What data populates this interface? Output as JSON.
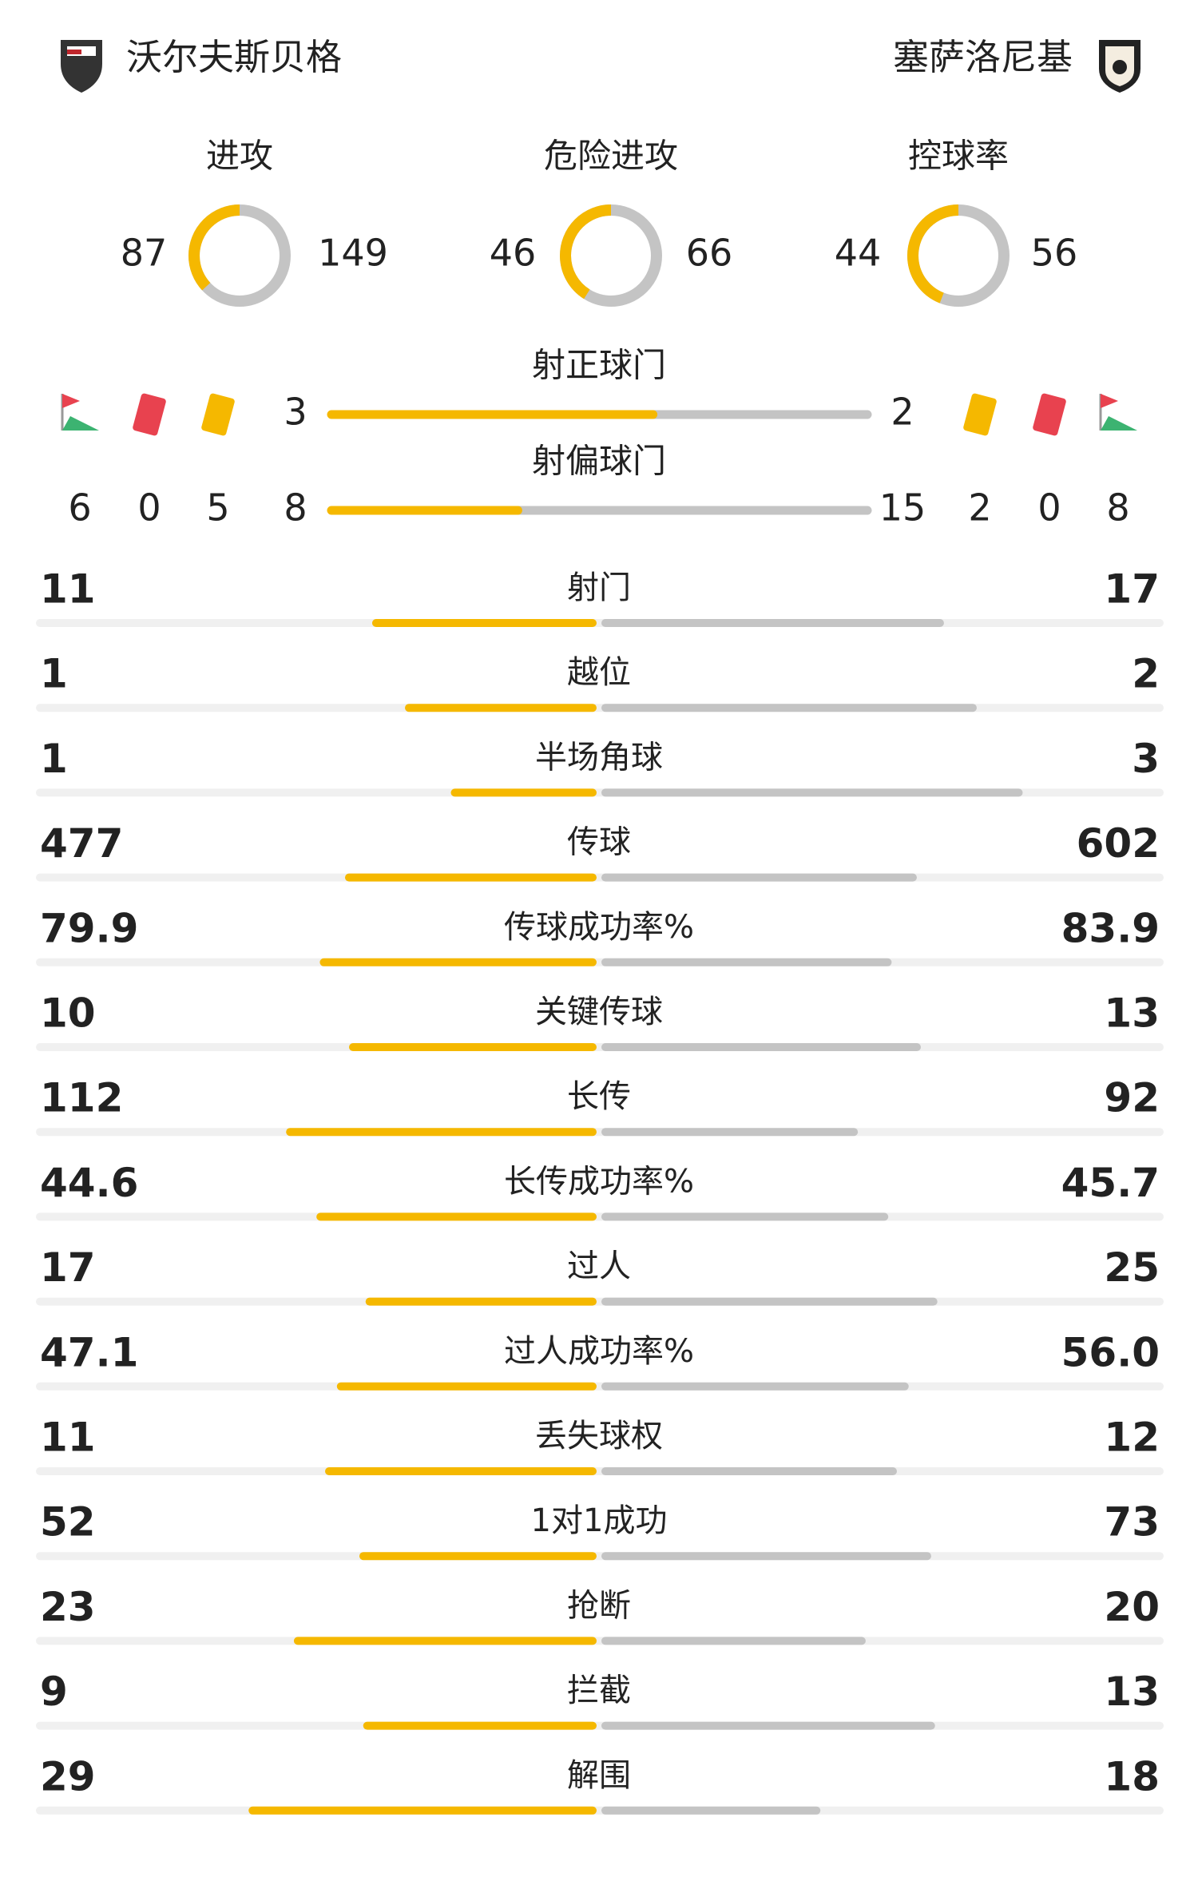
{
  "home_team": "沃尔夫斯贝格",
  "away_team": "塞萨洛尼基",
  "rings": [
    {
      "label": "进攻",
      "home": 87,
      "away": 149
    },
    {
      "label": "危险进攻",
      "home": 46,
      "away": 66
    },
    {
      "label": "控球率",
      "home": 44,
      "away": 56
    }
  ],
  "shots": [
    {
      "label": "射正球门",
      "home": 3,
      "away": 2
    },
    {
      "label": "射偏球门",
      "home": 8,
      "away": 15
    }
  ],
  "home_events": {
    "corners": 6,
    "red_cards": 0,
    "yellow_cards": 5
  },
  "away_events": {
    "yellow_cards": 2,
    "red_cards": 0,
    "corners": 8
  },
  "stats": [
    {
      "label": "射门",
      "home": "11",
      "away": "17"
    },
    {
      "label": "越位",
      "home": "1",
      "away": "2"
    },
    {
      "label": "半场角球",
      "home": "1",
      "away": "3"
    },
    {
      "label": "传球",
      "home": "477",
      "away": "602"
    },
    {
      "label": "传球成功率%",
      "home": "79.9",
      "away": "83.9"
    },
    {
      "label": "关键传球",
      "home": "10",
      "away": "13"
    },
    {
      "label": "长传",
      "home": "112",
      "away": "92"
    },
    {
      "label": "长传成功率%",
      "home": "44.6",
      "away": "45.7"
    },
    {
      "label": "过人",
      "home": "17",
      "away": "25"
    },
    {
      "label": "过人成功率%",
      "home": "47.1",
      "away": "56.0"
    },
    {
      "label": "丢失球权",
      "home": "11",
      "away": "12"
    },
    {
      "label": "1对1成功",
      "home": "52",
      "away": "73"
    },
    {
      "label": "抢断",
      "home": "23",
      "away": "20"
    },
    {
      "label": "拦截",
      "home": "9",
      "away": "13"
    },
    {
      "label": "解围",
      "home": "29",
      "away": "18"
    }
  ]
}
